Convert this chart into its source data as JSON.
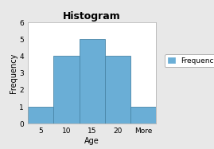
{
  "title": "Histogram",
  "xlabel": "Age",
  "ylabel": "Frequency",
  "categories": [
    "5",
    "10",
    "15",
    "20",
    "More"
  ],
  "values": [
    1,
    4,
    5,
    4,
    1
  ],
  "bar_color": "#6aaed6",
  "bar_edge_color": "#4a86a8",
  "ylim": [
    0,
    6
  ],
  "yticks": [
    0,
    1,
    2,
    3,
    4,
    5,
    6
  ],
  "legend_label": "Frequency",
  "fig_bg_color": "#e8e8e8",
  "plot_bg_color": "#ffffff",
  "title_fontsize": 9,
  "axis_label_fontsize": 7,
  "tick_fontsize": 6.5,
  "legend_fontsize": 6.5
}
